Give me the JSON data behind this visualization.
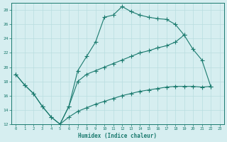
{
  "background_color": "#d6eef0",
  "grid_color": "#b8dde0",
  "line_color": "#1a7a6e",
  "xlabel": "Humidex (Indice chaleur)",
  "ylim": [
    12,
    29
  ],
  "xlim": [
    -0.5,
    23.5
  ],
  "yticks": [
    12,
    14,
    16,
    18,
    20,
    22,
    24,
    26,
    28
  ],
  "xticks": [
    0,
    1,
    2,
    3,
    4,
    5,
    6,
    7,
    8,
    9,
    10,
    11,
    12,
    13,
    14,
    15,
    16,
    17,
    18,
    19,
    20,
    21,
    22,
    23
  ],
  "line1_x": [
    0,
    1,
    2,
    3,
    4,
    5,
    6,
    7,
    8,
    9,
    10,
    11,
    12,
    13,
    14,
    15,
    16,
    17,
    18,
    19
  ],
  "line1_y": [
    19.0,
    17.5,
    16.3,
    14.5,
    13.0,
    12.0,
    14.5,
    19.5,
    21.5,
    23.5,
    27.0,
    27.3,
    28.5,
    27.8,
    27.3,
    27.0,
    26.8,
    26.7,
    26.0,
    24.5
  ],
  "line2_x": [
    0,
    1,
    2,
    3,
    4,
    5,
    6,
    7,
    8,
    9,
    10,
    11,
    12,
    13,
    14,
    15,
    16,
    17,
    18,
    19,
    20,
    21,
    22
  ],
  "line2_y": [
    19.0,
    17.5,
    16.3,
    14.5,
    13.0,
    12.0,
    14.5,
    18.0,
    19.0,
    19.5,
    20.0,
    20.5,
    21.0,
    21.5,
    22.0,
    22.3,
    22.7,
    23.0,
    23.5,
    24.5,
    22.5,
    21.0,
    17.3
  ],
  "line3_x": [
    5,
    6,
    7,
    8,
    9,
    10,
    11,
    12,
    13,
    14,
    15,
    16,
    17,
    18,
    19,
    20,
    21,
    22
  ],
  "line3_y": [
    12.0,
    13.0,
    13.8,
    14.3,
    14.8,
    15.2,
    15.6,
    16.0,
    16.3,
    16.6,
    16.8,
    17.0,
    17.2,
    17.3,
    17.3,
    17.3,
    17.2,
    17.3
  ]
}
